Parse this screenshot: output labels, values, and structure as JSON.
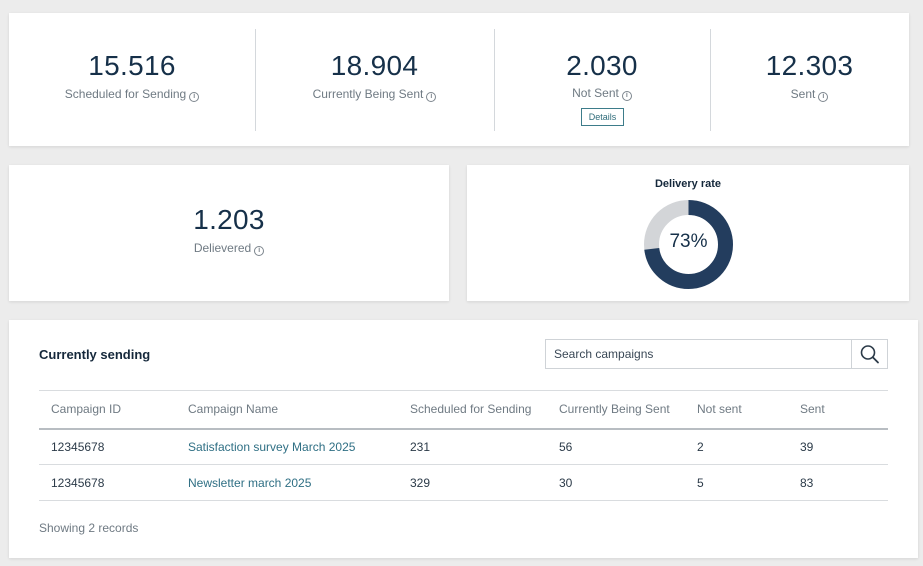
{
  "stats": [
    {
      "value": "15.516",
      "label": "Scheduled for Sending"
    },
    {
      "value": "18.904",
      "label": "Currently Being Sent"
    },
    {
      "value": "2.030",
      "label": "Not Sent"
    },
    {
      "value": "12.303",
      "label": "Sent"
    }
  ],
  "details_label": "Details",
  "delivered": {
    "value": "1.203",
    "label": "Delievered"
  },
  "delivery_rate": {
    "title": "Delivery rate",
    "percent_label": "73%",
    "fraction": 0.73,
    "fill_color": "#233d5e",
    "track_color": "#d3d5d8"
  },
  "campaigns": {
    "title": "Currently sending",
    "search_placeholder": "Search campaigns",
    "columns": [
      "Campaign ID",
      "Campaign Name",
      "Scheduled for Sending",
      "Currently Being Sent",
      "Not sent",
      "Sent"
    ],
    "rows": [
      {
        "id": "12345678",
        "name": "Satisfaction survey March 2025",
        "scheduled": "231",
        "sending": "56",
        "not_sent": "2",
        "sent": "39"
      },
      {
        "id": "12345678",
        "name": "Newsletter march 2025",
        "scheduled": "329",
        "sending": "30",
        "not_sent": "5",
        "sent": "83"
      }
    ],
    "footer": "Showing 2 records"
  },
  "icons": {
    "info": "info-icon",
    "search": "search-icon"
  }
}
